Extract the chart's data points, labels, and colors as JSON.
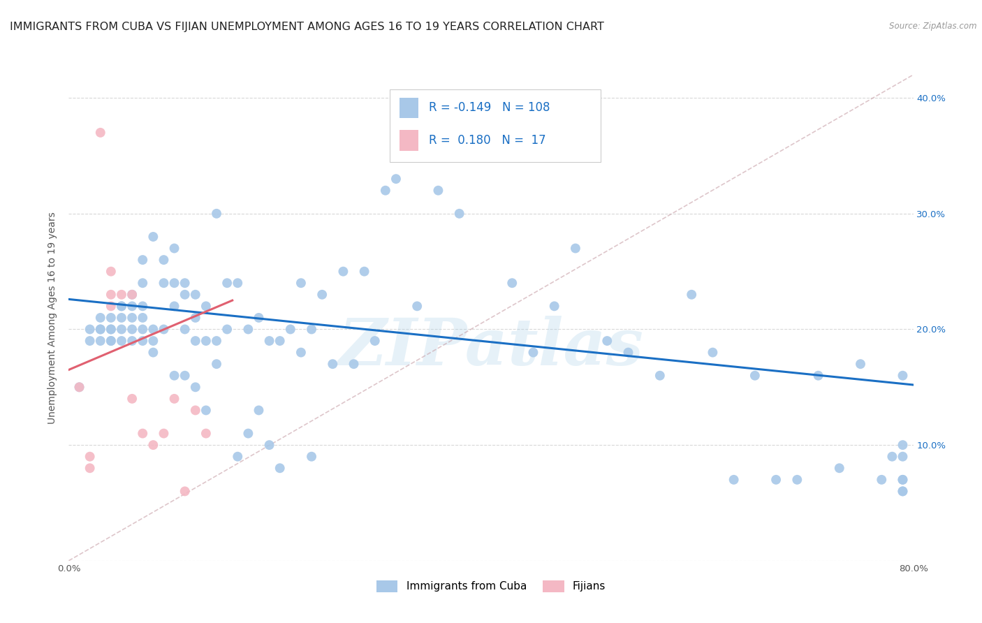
{
  "title": "IMMIGRANTS FROM CUBA VS FIJIAN UNEMPLOYMENT AMONG AGES 16 TO 19 YEARS CORRELATION CHART",
  "source": "Source: ZipAtlas.com",
  "ylabel": "Unemployment Among Ages 16 to 19 years",
  "xlim": [
    0.0,
    0.8
  ],
  "ylim": [
    0.0,
    0.42
  ],
  "yticks": [
    0.0,
    0.1,
    0.2,
    0.3,
    0.4
  ],
  "yticklabels": [
    "",
    "10.0%",
    "20.0%",
    "30.0%",
    "40.0%"
  ],
  "cuba_color": "#a8c8e8",
  "fijian_color": "#f4b8c4",
  "cuba_line_color": "#1a6fc4",
  "fijian_line_color": "#e06070",
  "diag_line_color": "#c8a0a8",
  "legend_R_cuba": "-0.149",
  "legend_N_cuba": "108",
  "legend_R_fijian": "0.180",
  "legend_N_fijian": "17",
  "cuba_scatter_x": [
    0.01,
    0.02,
    0.02,
    0.03,
    0.03,
    0.03,
    0.03,
    0.04,
    0.04,
    0.04,
    0.04,
    0.04,
    0.05,
    0.05,
    0.05,
    0.05,
    0.05,
    0.06,
    0.06,
    0.06,
    0.06,
    0.06,
    0.07,
    0.07,
    0.07,
    0.07,
    0.07,
    0.07,
    0.08,
    0.08,
    0.08,
    0.08,
    0.09,
    0.09,
    0.09,
    0.1,
    0.1,
    0.1,
    0.1,
    0.11,
    0.11,
    0.11,
    0.11,
    0.12,
    0.12,
    0.12,
    0.12,
    0.13,
    0.13,
    0.13,
    0.14,
    0.14,
    0.14,
    0.15,
    0.15,
    0.16,
    0.16,
    0.17,
    0.17,
    0.18,
    0.18,
    0.19,
    0.19,
    0.2,
    0.2,
    0.21,
    0.22,
    0.22,
    0.23,
    0.23,
    0.24,
    0.25,
    0.26,
    0.27,
    0.28,
    0.29,
    0.3,
    0.31,
    0.33,
    0.35,
    0.37,
    0.39,
    0.4,
    0.42,
    0.44,
    0.46,
    0.48,
    0.51,
    0.53,
    0.56,
    0.59,
    0.61,
    0.63,
    0.65,
    0.67,
    0.69,
    0.71,
    0.73,
    0.75,
    0.77,
    0.78,
    0.79,
    0.79,
    0.79,
    0.79,
    0.79,
    0.79,
    0.79
  ],
  "cuba_scatter_y": [
    0.15,
    0.19,
    0.2,
    0.19,
    0.2,
    0.2,
    0.21,
    0.19,
    0.2,
    0.21,
    0.19,
    0.2,
    0.19,
    0.21,
    0.2,
    0.22,
    0.22,
    0.19,
    0.21,
    0.22,
    0.23,
    0.2,
    0.21,
    0.22,
    0.24,
    0.19,
    0.2,
    0.26,
    0.18,
    0.19,
    0.2,
    0.28,
    0.2,
    0.24,
    0.26,
    0.16,
    0.22,
    0.24,
    0.27,
    0.16,
    0.2,
    0.23,
    0.24,
    0.15,
    0.19,
    0.21,
    0.23,
    0.13,
    0.19,
    0.22,
    0.17,
    0.19,
    0.3,
    0.2,
    0.24,
    0.09,
    0.24,
    0.11,
    0.2,
    0.13,
    0.21,
    0.1,
    0.19,
    0.08,
    0.19,
    0.2,
    0.18,
    0.24,
    0.09,
    0.2,
    0.23,
    0.17,
    0.25,
    0.17,
    0.25,
    0.19,
    0.32,
    0.33,
    0.22,
    0.32,
    0.3,
    0.36,
    0.35,
    0.24,
    0.18,
    0.22,
    0.27,
    0.19,
    0.18,
    0.16,
    0.23,
    0.18,
    0.07,
    0.16,
    0.07,
    0.07,
    0.16,
    0.08,
    0.17,
    0.07,
    0.09,
    0.16,
    0.1,
    0.09,
    0.07,
    0.06,
    0.07,
    0.06
  ],
  "fijian_scatter_x": [
    0.01,
    0.02,
    0.02,
    0.03,
    0.04,
    0.04,
    0.04,
    0.05,
    0.06,
    0.06,
    0.07,
    0.08,
    0.09,
    0.1,
    0.11,
    0.12,
    0.13
  ],
  "fijian_scatter_y": [
    0.15,
    0.08,
    0.09,
    0.37,
    0.22,
    0.25,
    0.23,
    0.23,
    0.14,
    0.23,
    0.11,
    0.1,
    0.11,
    0.14,
    0.06,
    0.13,
    0.11
  ],
  "cuba_trendline_x": [
    0.0,
    0.8
  ],
  "cuba_trendline_y": [
    0.226,
    0.152
  ],
  "fijian_trendline_x": [
    0.0,
    0.155
  ],
  "fijian_trendline_y": [
    0.165,
    0.225
  ],
  "diag_trendline_x": [
    0.0,
    0.8
  ],
  "diag_trendline_y": [
    0.0,
    0.42
  ],
  "watermark": "ZIPatlas",
  "background_color": "#ffffff",
  "grid_color": "#d8d8d8",
  "title_fontsize": 11.5,
  "axis_label_fontsize": 10,
  "tick_fontsize": 9.5,
  "legend_fontsize": 12,
  "marker_size": 100
}
